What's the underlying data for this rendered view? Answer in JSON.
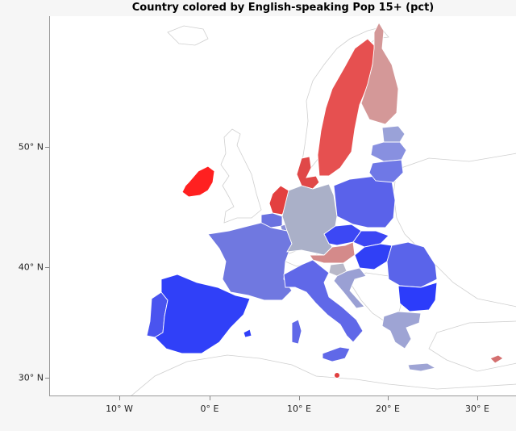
{
  "chart_data": {
    "type": "choropleth",
    "title": "Country colored by English-speaking Pop 15+ (pct)",
    "x_ticks": [
      "10° W",
      "0° E",
      "10° E",
      "20° E",
      "30° E"
    ],
    "y_ticks": [
      "50° N",
      "40° N",
      "30° N"
    ],
    "color_scale": {
      "low": "#2b3cff",
      "mid": "#b3b3c7",
      "high": "#ff1a1a"
    },
    "countries": [
      {
        "name": "Ireland",
        "color": "#ff2020"
      },
      {
        "name": "Sweden",
        "color": "#e65050"
      },
      {
        "name": "Denmark",
        "color": "#e04848"
      },
      {
        "name": "Netherlands",
        "color": "#e34040"
      },
      {
        "name": "Malta",
        "color": "#e04040"
      },
      {
        "name": "Finland",
        "color": "#d49898"
      },
      {
        "name": "Austria",
        "color": "#d48a8a"
      },
      {
        "name": "Cyprus",
        "color": "#d47070"
      },
      {
        "name": "Germany",
        "color": "#aab0c8"
      },
      {
        "name": "Slovenia",
        "color": "#b8b8c8"
      },
      {
        "name": "Greece",
        "color": "#9ea4d4"
      },
      {
        "name": "Estonia",
        "color": "#9aa2d8"
      },
      {
        "name": "Latvia",
        "color": "#8890e0"
      },
      {
        "name": "Lithuania",
        "color": "#6f78e6"
      },
      {
        "name": "Croatia",
        "color": "#9aa0d4"
      },
      {
        "name": "Luxembourg",
        "color": "#8a90d8"
      },
      {
        "name": "Belgium",
        "color": "#6a72e0"
      },
      {
        "name": "France",
        "color": "#7078e0"
      },
      {
        "name": "Italy",
        "color": "#6068e8"
      },
      {
        "name": "Poland",
        "color": "#5a62ea"
      },
      {
        "name": "Romania",
        "color": "#5a64ea"
      },
      {
        "name": "Portugal",
        "color": "#4a54ef"
      },
      {
        "name": "Czech Republic",
        "color": "#3c48f4"
      },
      {
        "name": "Slovakia",
        "color": "#3c46f4"
      },
      {
        "name": "Spain",
        "color": "#3040f8"
      },
      {
        "name": "Hungary",
        "color": "#3040f6"
      },
      {
        "name": "Bulgaria",
        "color": "#2c3cfa"
      }
    ]
  }
}
